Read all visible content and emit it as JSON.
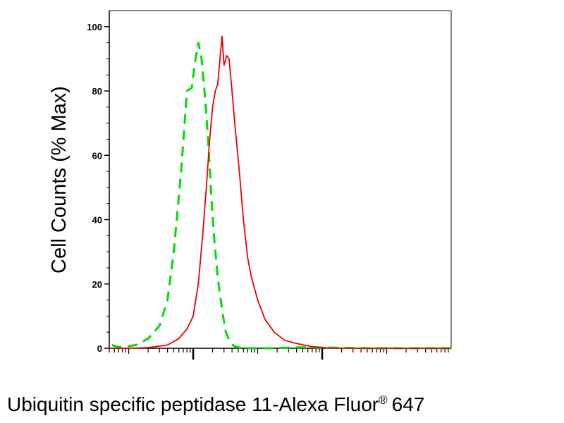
{
  "chart_data": {
    "type": "line",
    "title": "",
    "xlabel": "Ubiquitin specific peptidase 11-Alexa Fluor",
    "xlabel_mark": "®",
    "xlabel_suffix": "647",
    "ylabel": "Cell Counts (% Max)",
    "x_scale": "log",
    "xlim": [
      0.5,
      100000
    ],
    "ylim": [
      0,
      105
    ],
    "y_ticks": [
      0,
      20,
      40,
      60,
      80,
      100
    ],
    "x_major_ticks": [
      10,
      1000
    ],
    "grid": false,
    "series": [
      {
        "color": "#00dd00",
        "dash": "dashed",
        "x": [
          0.55,
          0.7,
          0.9,
          1.3,
          2.0,
          3.0,
          4.0,
          5.0,
          6.5,
          8.0,
          9.5,
          10.5,
          12.0,
          13.5,
          15,
          17,
          19,
          21,
          24,
          28,
          32,
          38,
          45,
          55,
          80,
          150,
          500,
          5000,
          100000
        ],
        "y": [
          1,
          0.3,
          0.5,
          1,
          3,
          7,
          15,
          30,
          55,
          80,
          81,
          88,
          95,
          90,
          80,
          65,
          48,
          35,
          22,
          12,
          5,
          1.5,
          0.5,
          0.1,
          0,
          0,
          0.3,
          0,
          0
        ]
      },
      {
        "color": "#ee0000",
        "dash": "solid",
        "x": [
          0.5,
          1.0,
          2.0,
          4.0,
          6.0,
          8.0,
          10,
          12,
          14,
          16,
          18,
          20,
          22,
          24,
          26,
          28,
          30,
          33,
          36,
          40,
          45,
          52,
          60,
          70,
          80,
          100,
          130,
          180,
          260,
          400,
          700,
          1200,
          3000,
          100000
        ],
        "y": [
          0,
          0,
          0.2,
          1,
          3,
          6,
          10,
          20,
          35,
          50,
          65,
          75,
          80,
          82,
          90,
          97,
          88,
          91,
          90,
          80,
          68,
          55,
          40,
          28,
          22,
          15,
          9,
          5,
          2.5,
          1.5,
          0.5,
          0.1,
          0,
          0
        ]
      }
    ]
  }
}
